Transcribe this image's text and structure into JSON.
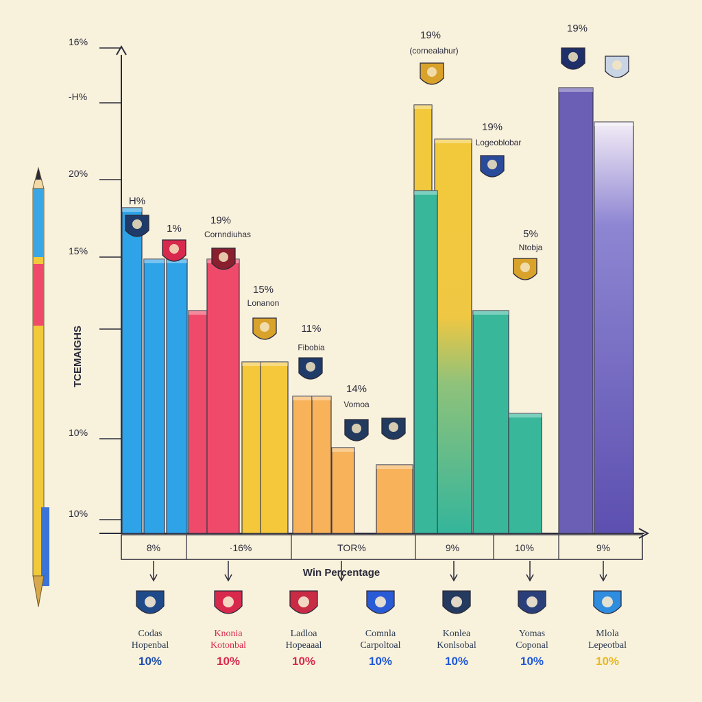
{
  "chart_data": {
    "type": "bar",
    "title": "",
    "xlabel": "Win Percentage",
    "ylabel": "TCEMAIGHS",
    "y_tick_labels": [
      "10%",
      "10%",
      "",
      "15%",
      "20%",
      "-H%",
      "16%"
    ],
    "groups": [
      {
        "label": "8%",
        "color": "#2ea3e8",
        "values": [
          19,
          16,
          16
        ]
      },
      {
        "label": "·16%",
        "color": "#ef4a6a",
        "values": [
          13,
          16
        ]
      },
      {
        "label": "",
        "color": "#f5c83c",
        "values": [
          10,
          10
        ]
      },
      {
        "label": "TOR%",
        "color": "#f7b25a",
        "values": [
          8,
          8,
          5,
          4
        ]
      },
      {
        "label": "9%",
        "color": "#e9c64a",
        "values": [
          25,
          23
        ]
      },
      {
        "label": "10%",
        "color": "#38b79a",
        "values": [
          20,
          13,
          7
        ]
      },
      {
        "label": "9%",
        "color": "#6b5fb5",
        "values": [
          26,
          24
        ]
      }
    ],
    "annotations": [
      "H%",
      "1%",
      "19%",
      "Cornndiuhas",
      "15%",
      "Lonanon",
      "11%",
      "Fibobia",
      "14%",
      "Vomoa",
      "19%",
      "(cornealahur)",
      "19%",
      "Logeoblobar",
      "5%",
      "Ntobja",
      "19%"
    ],
    "grid": false
  },
  "legend": [
    {
      "name": "Codas",
      "sub": "Hopenbal",
      "pct": "10%",
      "color": "#1f4a8a",
      "pct_color": "#1e4ea8",
      "icon": "shield-icon"
    },
    {
      "name": "Knonia",
      "sub": "Kotonbal",
      "pct": "10%",
      "color": "#d8294d",
      "pct_color": "#d8294d",
      "icon": "kangaroo-shield-icon"
    },
    {
      "name": "Ladloa",
      "sub": "Hopeaaal",
      "pct": "10%",
      "color": "#c92a44",
      "pct_color": "#d8294d",
      "icon": "red-shield-icon"
    },
    {
      "name": "Comnla",
      "sub": "Carpoltoal",
      "pct": "10%",
      "color": "#2a5bd7",
      "pct_color": "#1f58d6",
      "icon": "sun-emblem-icon"
    },
    {
      "name": "Konlea",
      "sub": "Konlsobal",
      "pct": "10%",
      "color": "#243a5e",
      "pct_color": "#1f58d6",
      "icon": "gear-emblem-icon"
    },
    {
      "name": "Yomas",
      "sub": "Coponal",
      "pct": "10%",
      "color": "#2a3f7a",
      "pct_color": "#1f58d6",
      "icon": "round-emblem-icon"
    },
    {
      "name": "Mlola",
      "sub": "Lepeotbal",
      "pct": "10%",
      "color": "#2f8de0",
      "pct_color": "#e7b820",
      "icon": "nd-shield-icon"
    }
  ]
}
